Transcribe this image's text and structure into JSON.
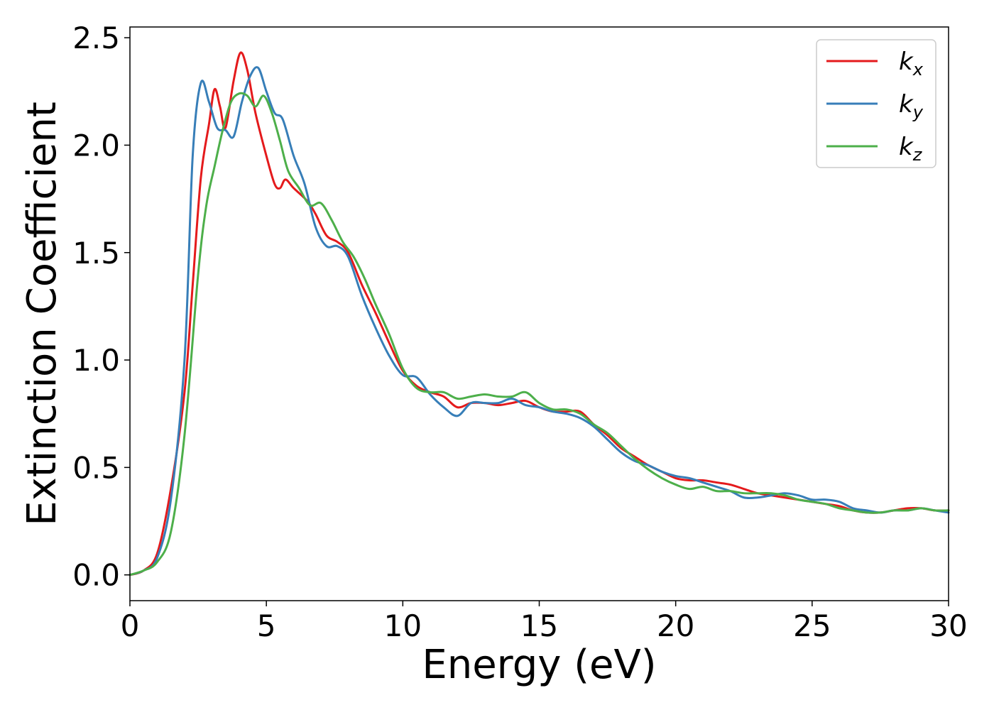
{
  "chart_data": {
    "type": "line",
    "title": "",
    "xlabel": "Energy (eV)",
    "ylabel": "Extinction Coefficient",
    "xlim": [
      0,
      30
    ],
    "ylim": [
      -0.12,
      2.55
    ],
    "xticks": [
      0,
      5,
      10,
      15,
      20,
      25,
      30
    ],
    "xtick_labels": [
      "0",
      "5",
      "10",
      "15",
      "20",
      "25",
      "30"
    ],
    "yticks": [
      0.0,
      0.5,
      1.0,
      1.5,
      2.0,
      2.5
    ],
    "ytick_labels": [
      "0.0",
      "0.5",
      "1.0",
      "1.5",
      "2.0",
      "2.5"
    ],
    "grid": false,
    "legend_position": "top-right",
    "series": [
      {
        "name": "kx",
        "legend_base": "k",
        "legend_sub": "x",
        "color": "#e41a1c",
        "points": [
          [
            0,
            0
          ],
          [
            0.5,
            0.02
          ],
          [
            1.0,
            0.1
          ],
          [
            1.5,
            0.4
          ],
          [
            2.0,
            0.85
          ],
          [
            2.3,
            1.35
          ],
          [
            2.6,
            1.85
          ],
          [
            2.9,
            2.1
          ],
          [
            3.1,
            2.26
          ],
          [
            3.3,
            2.18
          ],
          [
            3.5,
            2.08
          ],
          [
            3.8,
            2.3
          ],
          [
            4.05,
            2.43
          ],
          [
            4.3,
            2.35
          ],
          [
            4.6,
            2.15
          ],
          [
            5.0,
            1.95
          ],
          [
            5.3,
            1.82
          ],
          [
            5.5,
            1.8
          ],
          [
            5.7,
            1.84
          ],
          [
            6.0,
            1.8
          ],
          [
            6.5,
            1.74
          ],
          [
            6.8,
            1.68
          ],
          [
            7.2,
            1.58
          ],
          [
            7.6,
            1.55
          ],
          [
            8.0,
            1.5
          ],
          [
            8.5,
            1.35
          ],
          [
            9.0,
            1.22
          ],
          [
            9.5,
            1.08
          ],
          [
            10.0,
            0.95
          ],
          [
            10.5,
            0.88
          ],
          [
            11.0,
            0.85
          ],
          [
            11.5,
            0.83
          ],
          [
            12.0,
            0.78
          ],
          [
            12.5,
            0.8
          ],
          [
            13.0,
            0.8
          ],
          [
            13.5,
            0.79
          ],
          [
            14.0,
            0.8
          ],
          [
            14.5,
            0.81
          ],
          [
            15.0,
            0.78
          ],
          [
            15.5,
            0.76
          ],
          [
            16.0,
            0.76
          ],
          [
            16.5,
            0.76
          ],
          [
            17.0,
            0.7
          ],
          [
            17.5,
            0.65
          ],
          [
            18.0,
            0.59
          ],
          [
            18.5,
            0.55
          ],
          [
            19.0,
            0.51
          ],
          [
            19.5,
            0.48
          ],
          [
            20.0,
            0.45
          ],
          [
            20.5,
            0.44
          ],
          [
            21.0,
            0.44
          ],
          [
            21.5,
            0.43
          ],
          [
            22.0,
            0.42
          ],
          [
            22.5,
            0.4
          ],
          [
            23.0,
            0.38
          ],
          [
            23.5,
            0.37
          ],
          [
            24.0,
            0.36
          ],
          [
            24.5,
            0.35
          ],
          [
            25.0,
            0.34
          ],
          [
            25.5,
            0.33
          ],
          [
            26.0,
            0.32
          ],
          [
            26.5,
            0.3
          ],
          [
            27.0,
            0.29
          ],
          [
            27.5,
            0.29
          ],
          [
            28.0,
            0.3
          ],
          [
            28.5,
            0.31
          ],
          [
            29.0,
            0.31
          ],
          [
            29.5,
            0.3
          ],
          [
            30.0,
            0.3
          ]
        ]
      },
      {
        "name": "ky",
        "legend_base": "k",
        "legend_sub": "y",
        "color": "#377eb8",
        "points": [
          [
            0,
            0
          ],
          [
            0.5,
            0.02
          ],
          [
            1.0,
            0.08
          ],
          [
            1.5,
            0.35
          ],
          [
            2.0,
            1.0
          ],
          [
            2.3,
            1.95
          ],
          [
            2.6,
            2.29
          ],
          [
            2.9,
            2.2
          ],
          [
            3.2,
            2.08
          ],
          [
            3.5,
            2.07
          ],
          [
            3.8,
            2.04
          ],
          [
            4.1,
            2.2
          ],
          [
            4.4,
            2.32
          ],
          [
            4.7,
            2.36
          ],
          [
            5.0,
            2.25
          ],
          [
            5.3,
            2.15
          ],
          [
            5.6,
            2.12
          ],
          [
            6.0,
            1.95
          ],
          [
            6.4,
            1.82
          ],
          [
            6.8,
            1.62
          ],
          [
            7.2,
            1.53
          ],
          [
            7.6,
            1.53
          ],
          [
            8.0,
            1.48
          ],
          [
            8.5,
            1.3
          ],
          [
            9.0,
            1.15
          ],
          [
            9.5,
            1.02
          ],
          [
            10.0,
            0.93
          ],
          [
            10.5,
            0.92
          ],
          [
            11.0,
            0.84
          ],
          [
            11.5,
            0.78
          ],
          [
            12.0,
            0.74
          ],
          [
            12.5,
            0.8
          ],
          [
            13.0,
            0.8
          ],
          [
            13.5,
            0.8
          ],
          [
            14.0,
            0.82
          ],
          [
            14.5,
            0.79
          ],
          [
            15.0,
            0.78
          ],
          [
            15.5,
            0.76
          ],
          [
            16.0,
            0.75
          ],
          [
            16.5,
            0.73
          ],
          [
            17.0,
            0.69
          ],
          [
            17.5,
            0.63
          ],
          [
            18.0,
            0.57
          ],
          [
            18.5,
            0.53
          ],
          [
            19.0,
            0.51
          ],
          [
            19.5,
            0.48
          ],
          [
            20.0,
            0.46
          ],
          [
            20.5,
            0.45
          ],
          [
            21.0,
            0.43
          ],
          [
            21.5,
            0.41
          ],
          [
            22.0,
            0.39
          ],
          [
            22.5,
            0.36
          ],
          [
            23.0,
            0.36
          ],
          [
            23.5,
            0.37
          ],
          [
            24.0,
            0.38
          ],
          [
            24.5,
            0.37
          ],
          [
            25.0,
            0.35
          ],
          [
            25.5,
            0.35
          ],
          [
            26.0,
            0.34
          ],
          [
            26.5,
            0.31
          ],
          [
            27.0,
            0.3
          ],
          [
            27.5,
            0.29
          ],
          [
            28.0,
            0.3
          ],
          [
            28.5,
            0.3
          ],
          [
            29.0,
            0.31
          ],
          [
            29.5,
            0.3
          ],
          [
            30.0,
            0.29
          ]
        ]
      },
      {
        "name": "kz",
        "legend_base": "k",
        "legend_sub": "z",
        "color": "#4daf4a",
        "points": [
          [
            0,
            0
          ],
          [
            0.5,
            0.02
          ],
          [
            1.0,
            0.06
          ],
          [
            1.5,
            0.2
          ],
          [
            2.0,
            0.65
          ],
          [
            2.5,
            1.4
          ],
          [
            2.8,
            1.72
          ],
          [
            3.1,
            1.9
          ],
          [
            3.4,
            2.07
          ],
          [
            3.7,
            2.2
          ],
          [
            4.0,
            2.24
          ],
          [
            4.3,
            2.23
          ],
          [
            4.6,
            2.18
          ],
          [
            4.9,
            2.23
          ],
          [
            5.2,
            2.15
          ],
          [
            5.5,
            2.02
          ],
          [
            5.8,
            1.88
          ],
          [
            6.2,
            1.8
          ],
          [
            6.6,
            1.72
          ],
          [
            7.0,
            1.73
          ],
          [
            7.4,
            1.65
          ],
          [
            7.8,
            1.55
          ],
          [
            8.2,
            1.48
          ],
          [
            8.6,
            1.38
          ],
          [
            9.0,
            1.26
          ],
          [
            9.5,
            1.12
          ],
          [
            10.0,
            0.96
          ],
          [
            10.5,
            0.87
          ],
          [
            11.0,
            0.85
          ],
          [
            11.5,
            0.85
          ],
          [
            12.0,
            0.82
          ],
          [
            12.5,
            0.83
          ],
          [
            13.0,
            0.84
          ],
          [
            13.5,
            0.83
          ],
          [
            14.0,
            0.83
          ],
          [
            14.5,
            0.85
          ],
          [
            15.0,
            0.8
          ],
          [
            15.5,
            0.77
          ],
          [
            16.0,
            0.77
          ],
          [
            16.5,
            0.75
          ],
          [
            17.0,
            0.7
          ],
          [
            17.5,
            0.66
          ],
          [
            18.0,
            0.6
          ],
          [
            18.5,
            0.54
          ],
          [
            19.0,
            0.49
          ],
          [
            19.5,
            0.45
          ],
          [
            20.0,
            0.42
          ],
          [
            20.5,
            0.4
          ],
          [
            21.0,
            0.41
          ],
          [
            21.5,
            0.39
          ],
          [
            22.0,
            0.39
          ],
          [
            22.5,
            0.38
          ],
          [
            23.0,
            0.38
          ],
          [
            23.5,
            0.38
          ],
          [
            24.0,
            0.37
          ],
          [
            24.5,
            0.35
          ],
          [
            25.0,
            0.34
          ],
          [
            25.5,
            0.33
          ],
          [
            26.0,
            0.31
          ],
          [
            26.5,
            0.3
          ],
          [
            27.0,
            0.29
          ],
          [
            27.5,
            0.29
          ],
          [
            28.0,
            0.3
          ],
          [
            28.5,
            0.3
          ],
          [
            29.0,
            0.31
          ],
          [
            29.5,
            0.3
          ],
          [
            30.0,
            0.3
          ]
        ]
      }
    ]
  }
}
